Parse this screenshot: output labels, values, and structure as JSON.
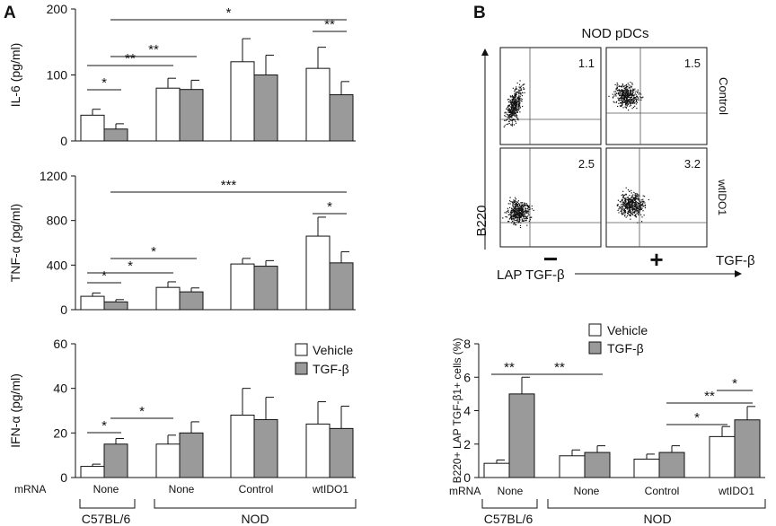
{
  "panel_labels": {
    "a": "A",
    "b": "B"
  },
  "legend": {
    "vehicle": "Vehicle",
    "tgf": "TGF-β"
  },
  "groups": {
    "row_title": "mRNA",
    "labels": [
      "None",
      "None",
      "Control",
      "wtIDO1"
    ],
    "strain_c57": "C57BL/6",
    "strain_nod": "NOD"
  },
  "colors": {
    "vehicle": "#ffffff",
    "tgf": "#9a9a9a",
    "ink": "#111111"
  },
  "flow": {
    "title": "NOD pDCs",
    "yaxis": "B220",
    "xaxis": "LAP TGF-β",
    "row_labels": [
      "Control",
      "wtIDO1"
    ],
    "col_signs": [
      "−",
      "+"
    ],
    "treatment": "TGF-β",
    "quadrant_values": [
      "1.1",
      "1.5",
      "2.5",
      "3.2"
    ]
  },
  "chart_data": [
    {
      "type": "bar",
      "id": "il6",
      "ylabel": "IL-6 (pg/ml)",
      "ylim": [
        0,
        200
      ],
      "yticks": [
        "0",
        "100",
        "200"
      ],
      "categories": [
        "None",
        "None",
        "Control",
        "wtIDO1"
      ],
      "series": [
        {
          "name": "Vehicle",
          "values": [
            39,
            80,
            120,
            110
          ],
          "errors": [
            9,
            15,
            35,
            32
          ]
        },
        {
          "name": "TGF-β",
          "values": [
            18,
            78,
            100,
            70
          ],
          "errors": [
            8,
            14,
            30,
            20
          ]
        }
      ],
      "significance": [
        {
          "label": "*",
          "from": [
            0,
            0
          ],
          "to": [
            0,
            1
          ]
        },
        {
          "label": "**",
          "from": [
            0,
            0
          ],
          "to": [
            1,
            0
          ]
        },
        {
          "label": "**",
          "from": [
            0,
            1
          ],
          "to": [
            1,
            1
          ]
        },
        {
          "label": "*",
          "from": [
            0,
            1
          ],
          "to": [
            3,
            1
          ]
        },
        {
          "label": "**",
          "from": [
            3,
            0
          ],
          "to": [
            3,
            1
          ]
        }
      ]
    },
    {
      "type": "bar",
      "id": "tnf",
      "ylabel": "TNF-α (pg/ml)",
      "ylim": [
        0,
        1200
      ],
      "yticks": [
        "0",
        "400",
        "800",
        "1200"
      ],
      "categories": [
        "None",
        "None",
        "Control",
        "wtIDO1"
      ],
      "series": [
        {
          "name": "Vehicle",
          "values": [
            120,
            200,
            410,
            660
          ],
          "errors": [
            30,
            50,
            50,
            170
          ]
        },
        {
          "name": "TGF-β",
          "values": [
            70,
            160,
            390,
            420
          ],
          "errors": [
            20,
            35,
            50,
            100
          ]
        }
      ],
      "significance": [
        {
          "label": "*",
          "from": [
            0,
            0
          ],
          "to": [
            0,
            1
          ]
        },
        {
          "label": "*",
          "from": [
            0,
            0
          ],
          "to": [
            1,
            0
          ]
        },
        {
          "label": "*",
          "from": [
            0,
            1
          ],
          "to": [
            1,
            1
          ]
        },
        {
          "label": "***",
          "from": [
            0,
            1
          ],
          "to": [
            3,
            1
          ]
        },
        {
          "label": "*",
          "from": [
            3,
            0
          ],
          "to": [
            3,
            1
          ]
        }
      ]
    },
    {
      "type": "bar",
      "id": "ifn",
      "ylabel": "IFN-α (pg/ml)",
      "ylim": [
        0,
        60
      ],
      "yticks": [
        "0",
        "20",
        "40",
        "60"
      ],
      "categories": [
        "None",
        "None",
        "Control",
        "wtIDO1"
      ],
      "series": [
        {
          "name": "Vehicle",
          "values": [
            5,
            15,
            28,
            24
          ],
          "errors": [
            1,
            4,
            12,
            10
          ]
        },
        {
          "name": "TGF-β",
          "values": [
            15,
            20,
            26,
            22
          ],
          "errors": [
            2.5,
            5,
            10,
            10
          ]
        }
      ],
      "significance": [
        {
          "label": "*",
          "from": [
            0,
            0
          ],
          "to": [
            0,
            1
          ]
        },
        {
          "label": "*",
          "from": [
            0,
            1
          ],
          "to": [
            1,
            0
          ]
        }
      ]
    },
    {
      "type": "bar",
      "id": "lap",
      "ylabel": "B220+ LAP TGF-β1+ cells (%)",
      "ylim": [
        0,
        8
      ],
      "yticks": [
        "0",
        "2",
        "4",
        "6",
        "8"
      ],
      "categories": [
        "None",
        "None",
        "Control",
        "wtIDO1"
      ],
      "series": [
        {
          "name": "Vehicle",
          "values": [
            0.85,
            1.3,
            1.1,
            2.45
          ],
          "errors": [
            0.2,
            0.35,
            0.3,
            0.6
          ]
        },
        {
          "name": "TGF-β",
          "values": [
            5.0,
            1.5,
            1.5,
            3.45
          ],
          "errors": [
            1.0,
            0.4,
            0.4,
            0.8
          ]
        }
      ],
      "significance": [
        {
          "label": "**",
          "from": [
            0,
            0
          ],
          "to": [
            0,
            1
          ]
        },
        {
          "label": "**",
          "from": [
            0,
            1
          ],
          "to": [
            1,
            1
          ]
        },
        {
          "label": "*",
          "from": [
            2,
            1
          ],
          "to": [
            3,
            0
          ]
        },
        {
          "label": "**",
          "from": [
            2,
            1
          ],
          "to": [
            3,
            1
          ]
        },
        {
          "label": "*",
          "from": [
            3,
            0
          ],
          "to": [
            3,
            1
          ]
        }
      ]
    }
  ]
}
